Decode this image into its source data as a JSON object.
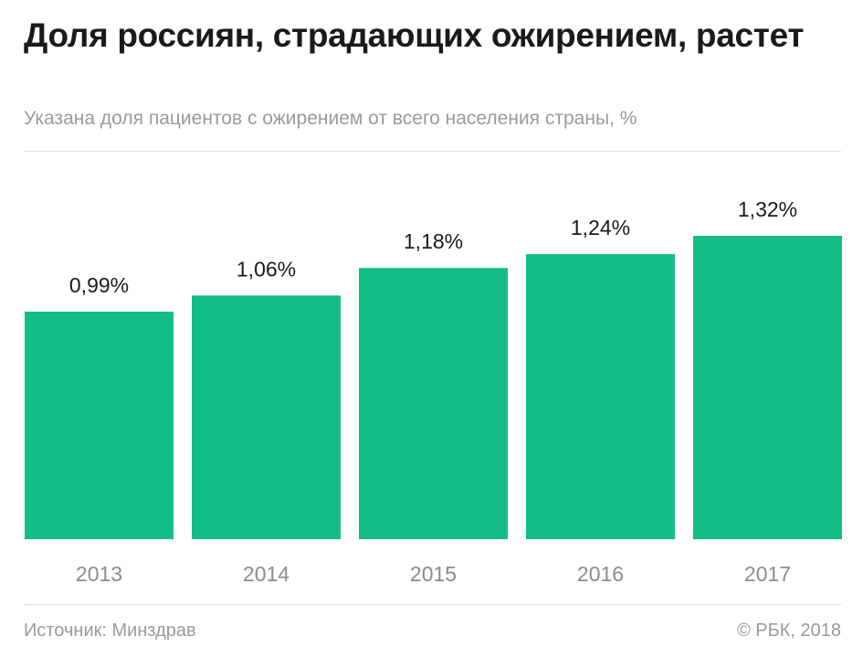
{
  "header": {
    "title": "Доля россиян, страдающих ожирением, растет",
    "subtitle": "Указана доля пациентов с ожирением от всего населения страны, %"
  },
  "footer": {
    "source": "Источник: Минздрав",
    "copyright": "© РБК, 2018"
  },
  "chart_data": {
    "type": "bar",
    "categories": [
      "2013",
      "2014",
      "2015",
      "2016",
      "2017"
    ],
    "values": [
      0.99,
      1.06,
      1.18,
      1.24,
      1.32
    ],
    "value_labels": [
      "0,99%",
      "1,06%",
      "1,18%",
      "1,24%",
      "1,32%"
    ],
    "ylim": [
      0,
      1.32
    ],
    "grid": false,
    "colors": {
      "bar": "#13bd87"
    }
  }
}
